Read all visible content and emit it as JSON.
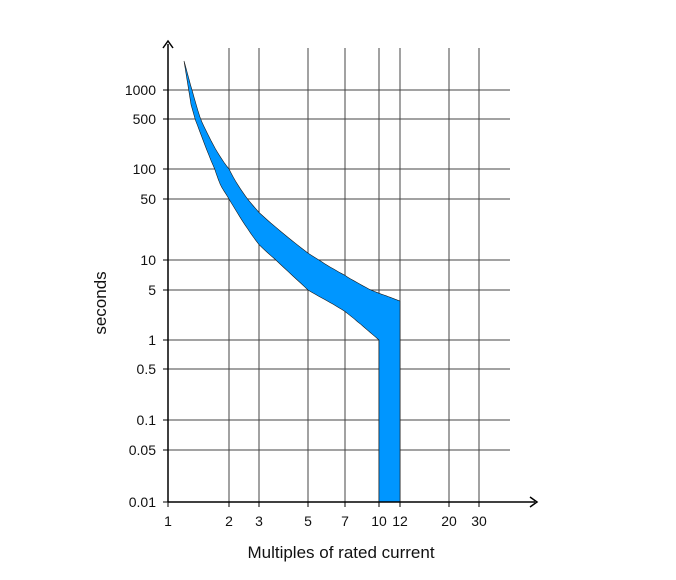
{
  "chart_data": {
    "type": "area",
    "title": "",
    "xlabel": "Multiples of rated current",
    "ylabel": "seconds",
    "x_scale": "log",
    "y_scale": "log",
    "xlim": [
      1,
      40
    ],
    "ylim": [
      0.01,
      2000
    ],
    "grid": true,
    "x_ticks": [
      1,
      2,
      3,
      5,
      7,
      10,
      12,
      20,
      30
    ],
    "x_tick_labels": [
      "1",
      "2",
      "3",
      "5",
      "7",
      "10",
      "12",
      "20",
      "30"
    ],
    "y_ticks": [
      0.01,
      0.05,
      0.1,
      0.5,
      1,
      5,
      10,
      50,
      100,
      500,
      1000
    ],
    "y_tick_labels": [
      "0.01",
      "0.05",
      "0.1",
      "0.5",
      "1",
      "5",
      "10",
      "50",
      "100",
      "500",
      "1000"
    ],
    "colors": {
      "band": "#0096ff",
      "band_edge": "#1a1a1a",
      "grid": "#444444",
      "axis": "#000000"
    },
    "series": [
      {
        "upper_x": [
          1.2,
          1.5,
          2,
          3,
          5,
          7,
          10,
          12
        ],
        "upper_y": [
          2000,
          400,
          100,
          35,
          12,
          7,
          4.5,
          3.5
        ],
        "lower_x": [
          1.3,
          1.7,
          2,
          3,
          5,
          7,
          10
        ],
        "lower_y": [
          700,
          100,
          50,
          15,
          5,
          2.5,
          1.0
        ],
        "vertical_band_x": [
          10,
          12
        ],
        "vertical_band_bottom": 0.01
      }
    ]
  }
}
